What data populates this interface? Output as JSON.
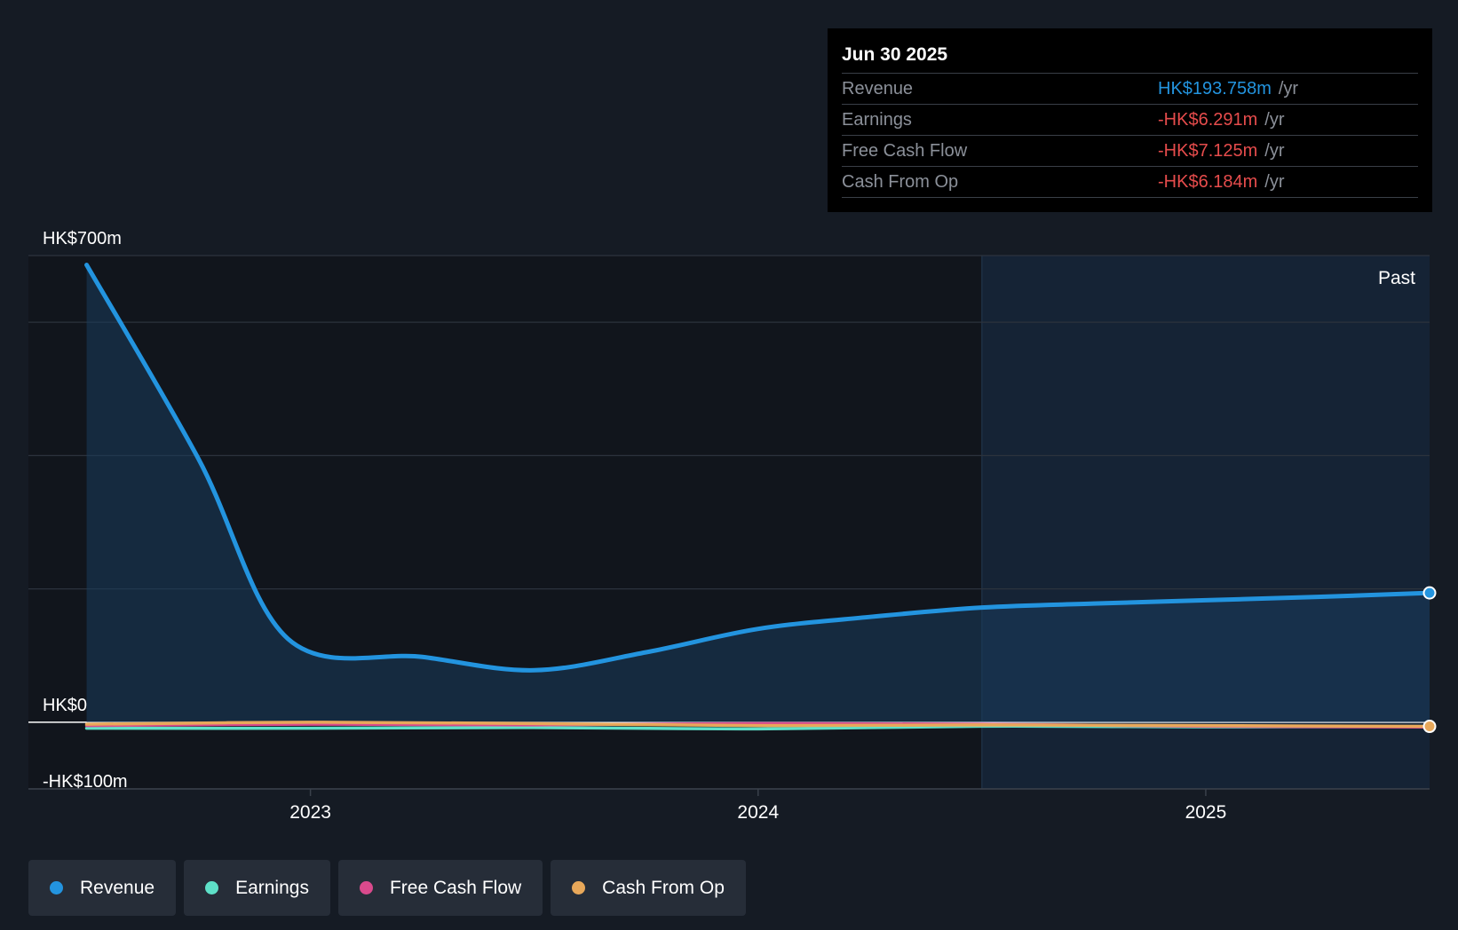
{
  "tooltip": {
    "date": "Jun 30 2025",
    "rows": [
      {
        "label": "Revenue",
        "value": "HK$193.758m",
        "unit": "/yr",
        "color": "#2394df"
      },
      {
        "label": "Earnings",
        "value": "-HK$6.291m",
        "unit": "/yr",
        "color": "#e64c4c"
      },
      {
        "label": "Free Cash Flow",
        "value": "-HK$7.125m",
        "unit": "/yr",
        "color": "#e64c4c"
      },
      {
        "label": "Cash From Op",
        "value": "-HK$6.184m",
        "unit": "/yr",
        "color": "#e64c4c"
      }
    ]
  },
  "past_label": "Past",
  "chart_data": {
    "type": "area",
    "y_tick_labels": [
      "HK$700m",
      "HK$0",
      "-HK$100m"
    ],
    "ylim": [
      -100,
      700
    ],
    "x_tick_labels": [
      "2023",
      "2024",
      "2025"
    ],
    "x_ticks": [
      2023.0,
      2024.0,
      2025.0
    ],
    "xlim": [
      2022.37,
      2025.5
    ],
    "past_start": 2024.5,
    "series": [
      {
        "name": "Revenue",
        "color": "#2394df",
        "x": [
          2022.5,
          2022.75,
          2022.95,
          2023.25,
          2023.5,
          2023.75,
          2024.0,
          2024.25,
          2024.5,
          2024.75,
          2025.0,
          2025.25,
          2025.5
        ],
        "values": [
          686,
          395,
          125,
          98,
          78,
          105,
          140,
          158,
          172,
          178,
          183,
          188,
          194
        ]
      },
      {
        "name": "Earnings",
        "color": "#5ee0c8",
        "x": [
          2022.5,
          2023.0,
          2023.5,
          2024.0,
          2024.5,
          2025.0,
          2025.5
        ],
        "values": [
          -9,
          -9,
          -8,
          -10,
          -6,
          -7,
          -6.3
        ]
      },
      {
        "name": "Free Cash Flow",
        "color": "#d94a8c",
        "x": [
          2022.5,
          2023.0,
          2023.5,
          2024.0,
          2024.5,
          2025.0,
          2025.5
        ],
        "values": [
          -5,
          -3,
          -4,
          -2,
          -3,
          -6,
          -7.1
        ]
      },
      {
        "name": "Cash From Op",
        "color": "#e8a85a",
        "x": [
          2022.5,
          2023.0,
          2023.5,
          2024.0,
          2024.5,
          2025.0,
          2025.5
        ],
        "values": [
          -3,
          0,
          -2,
          -5,
          -4,
          -5,
          -6.2
        ]
      }
    ]
  },
  "legend": [
    {
      "label": "Revenue",
      "color": "#2394df"
    },
    {
      "label": "Earnings",
      "color": "#5ee0c8"
    },
    {
      "label": "Free Cash Flow",
      "color": "#d94a8c"
    },
    {
      "label": "Cash From Op",
      "color": "#e8a85a"
    }
  ]
}
